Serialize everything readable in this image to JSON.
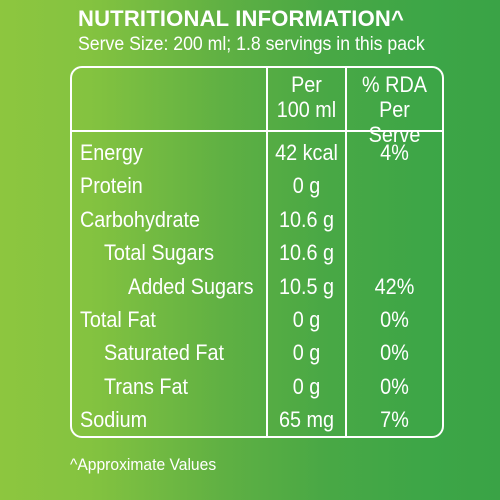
{
  "header": {
    "title": "NUTRITIONAL INFORMATION^",
    "serve_size": "Serve Size: 200 ml; 1.8 servings in this pack"
  },
  "table": {
    "col_per_line1": "Per",
    "col_per_line2": "100 ml",
    "col_rda_line1": "% RDA",
    "col_rda_line2": "Per Serve",
    "rows": [
      {
        "label": "Energy",
        "value": "42 kcal",
        "rda": "4%",
        "indent": 0
      },
      {
        "label": "Protein",
        "value": "0 g",
        "rda": "",
        "indent": 0
      },
      {
        "label": "Carbohydrate",
        "value": "10.6 g",
        "rda": "",
        "indent": 0
      },
      {
        "label": "Total Sugars",
        "value": "10.6 g",
        "rda": "",
        "indent": 1
      },
      {
        "label": "Added Sugars",
        "value": "10.5 g",
        "rda": "42%",
        "indent": 2
      },
      {
        "label": "Total Fat",
        "value": "0 g",
        "rda": "0%",
        "indent": 0
      },
      {
        "label": "Saturated Fat",
        "value": "0 g",
        "rda": "0%",
        "indent": 1
      },
      {
        "label": "Trans Fat",
        "value": "0 g",
        "rda": "0%",
        "indent": 1
      },
      {
        "label": "Sodium",
        "value": "65 mg",
        "rda": "7%",
        "indent": 0
      }
    ]
  },
  "footnote": "^Approximate Values",
  "colors": {
    "background_light": "#8dc63f",
    "background_dark": "#3aa346",
    "text": "#ffffff"
  }
}
